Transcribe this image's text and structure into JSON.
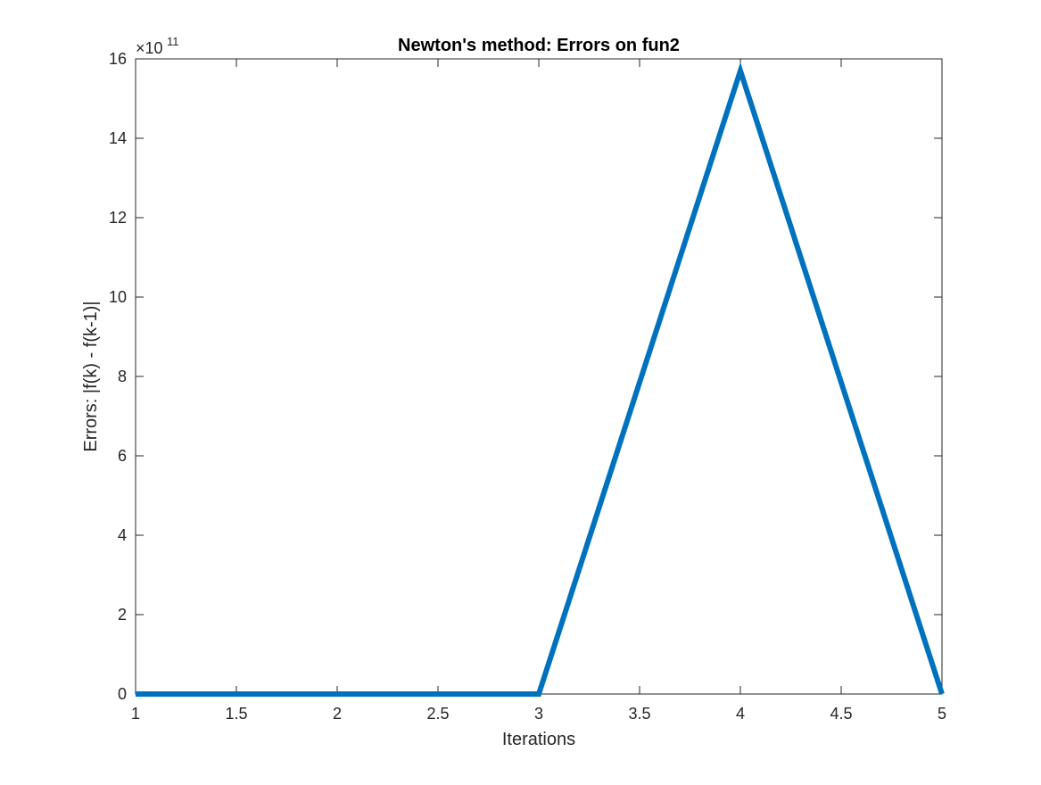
{
  "chart_data": {
    "type": "line",
    "title": "Newton's method: Errors on fun2",
    "xlabel": "Iterations",
    "ylabel": "Errors: |f(k) - f(k-1)|",
    "x": [
      1,
      2,
      3,
      4,
      5
    ],
    "series": [
      {
        "values": [
          0,
          0,
          0,
          1570000000000.0,
          0
        ],
        "color": "#0072BD"
      }
    ],
    "xlim": [
      1,
      5
    ],
    "ylim": [
      0,
      1600000000000.0
    ],
    "xticks": [
      1,
      1.5,
      2,
      2.5,
      3,
      3.5,
      4,
      4.5,
      5
    ],
    "xtick_labels": [
      "1",
      "1.5",
      "2",
      "2.5",
      "3",
      "3.5",
      "4",
      "4.5",
      "5"
    ],
    "yticks": [
      0,
      200000000000.0,
      400000000000.0,
      600000000000.0,
      800000000000.0,
      1000000000000.0,
      1200000000000.0,
      1400000000000.0,
      1600000000000.0
    ],
    "ytick_labels": [
      "0",
      "2",
      "4",
      "6",
      "8",
      "10",
      "12",
      "14",
      "16"
    ],
    "y_exponent_base": "×10",
    "y_exponent_power": "11",
    "grid": false,
    "legend": "none"
  }
}
